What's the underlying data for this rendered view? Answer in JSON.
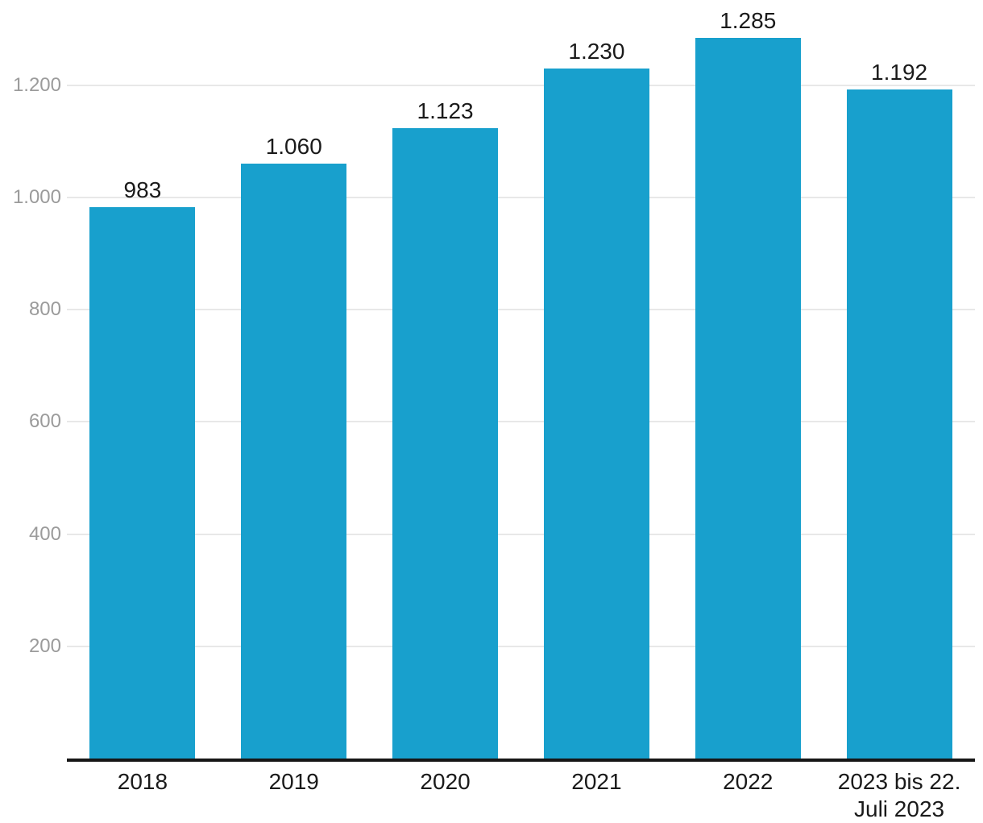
{
  "chart_data": {
    "type": "bar",
    "title": "",
    "xlabel": "",
    "ylabel": "",
    "categories": [
      "2018",
      "2019",
      "2020",
      "2021",
      "2022",
      "2023 bis 22. Juli 2023"
    ],
    "values": [
      983,
      1060,
      1123,
      1230,
      1285,
      1192
    ],
    "value_labels": [
      "983",
      "1.060",
      "1.123",
      "1.230",
      "1.285",
      "1.192"
    ],
    "yticks": [
      {
        "value": 200,
        "label": "200"
      },
      {
        "value": 400,
        "label": "400"
      },
      {
        "value": 600,
        "label": "600"
      },
      {
        "value": 800,
        "label": "800"
      },
      {
        "value": 1000,
        "label": "1.000"
      },
      {
        "value": 1200,
        "label": "1.200"
      }
    ],
    "ylim": [
      0,
      1352
    ],
    "grid": "horizontal",
    "legend": "none",
    "number_format": "de-DE",
    "colors": {
      "bar": "#18a0cd",
      "gridline": "#e8e8e8",
      "axis_line": "#161616",
      "value_label": "#1a1a1a",
      "x_tick_label": "#1a1a1a",
      "y_tick_label": "#9b9b9b",
      "background": "#ffffff"
    }
  }
}
